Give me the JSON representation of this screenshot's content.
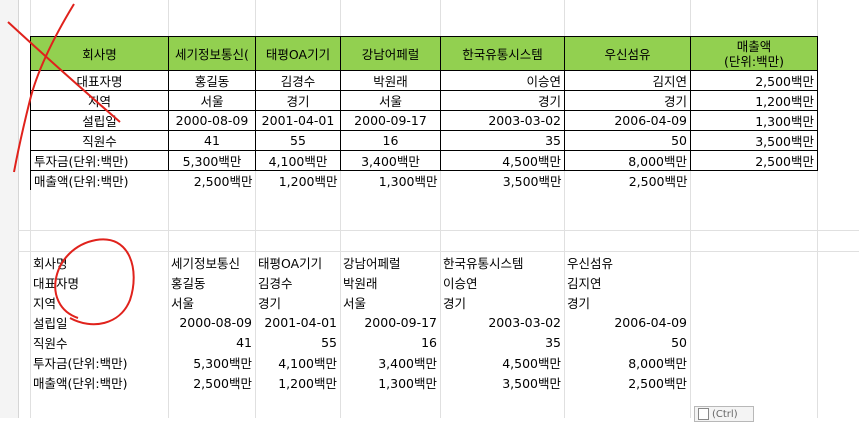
{
  "table1": {
    "header": [
      "회사명",
      "세기정보통신(",
      "태평OA기기",
      "강남어페럴",
      "한국유통시스템",
      "우신섬유"
    ],
    "header_last": [
      "매출액",
      "(단위:백만)"
    ],
    "rows": [
      [
        "대표자명",
        "홍길동",
        "김경수",
        "박원래",
        "이승연",
        "김지연",
        "2,500백만"
      ],
      [
        "지역",
        "서울",
        "경기",
        "서울",
        "경기",
        "경기",
        "1,200백만"
      ],
      [
        "설립일",
        "2000-08-09",
        "2001-04-01",
        "2000-09-17",
        "2003-03-02",
        "2006-04-09",
        "1,300백만"
      ],
      [
        "직원수",
        "41",
        "55",
        "16",
        "35",
        "50",
        "3,500백만"
      ],
      [
        "투자금(단위:백만)",
        "5,300백만",
        "4,100백만",
        "3,400백만",
        "4,500백만",
        "8,000백만",
        "2,500백만"
      ]
    ],
    "last_row": [
      "매출액(단위:백만)",
      "2,500백만",
      "1,200백만",
      "1,300백만",
      "3,500백만",
      "2,500백만"
    ]
  },
  "table2": {
    "rows": [
      [
        "회사명",
        "세기정보통신",
        "태평OA기기",
        "강남어페럴",
        "한국유통시스템",
        "우신섬유"
      ],
      [
        "대표자명",
        "홍길동",
        "김경수",
        "박원래",
        "이승연",
        "김지연"
      ],
      [
        "지역",
        "서울",
        "경기",
        "서울",
        "경기",
        "경기"
      ],
      [
        "설립일",
        "2000-08-09",
        "2001-04-01",
        "2000-09-17",
        "2003-03-02",
        "2006-04-09"
      ],
      [
        "직원수",
        "41",
        "55",
        "16",
        "35",
        "50"
      ],
      [
        "투자금(단위:백만)",
        "5,300백만",
        "4,100백만",
        "3,400백만",
        "4,500백만",
        "8,000백만"
      ],
      [
        "매출액(단위:백만)",
        "2,500백만",
        "1,200백만",
        "1,300백만",
        "3,500백만",
        "2,500백만"
      ]
    ]
  },
  "paste_options": {
    "label": "(Ctrl)",
    "icon": "clipboard-icon"
  },
  "colors": {
    "header_fill": "#92d050",
    "annotation": "#e0221c"
  }
}
